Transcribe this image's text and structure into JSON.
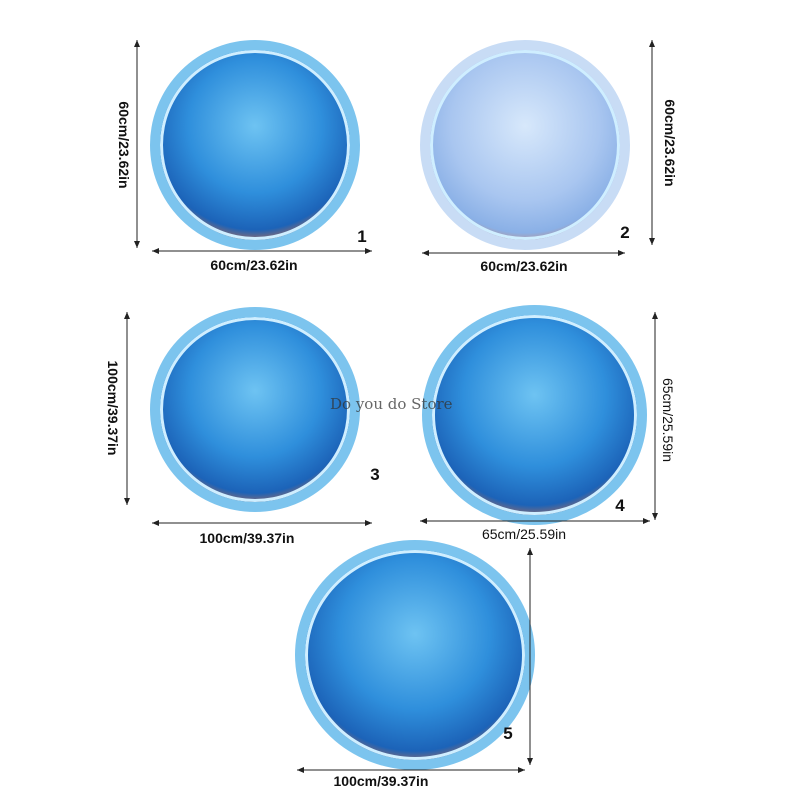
{
  "watermark": "Do you do Store",
  "mats": [
    {
      "number": "1",
      "height": "60cm/23.62in",
      "width": "60cm/23.62in"
    },
    {
      "number": "2",
      "height": "60cm/23.62in",
      "width": "60cm/23.62in"
    },
    {
      "number": "3",
      "height": "100cm/39.37in",
      "width": "100cm/39.37in"
    },
    {
      "number": "4",
      "height": "65cm/25.59in",
      "width": "65cm/25.59in"
    },
    {
      "number": "5",
      "width": "100cm/39.37in"
    }
  ]
}
